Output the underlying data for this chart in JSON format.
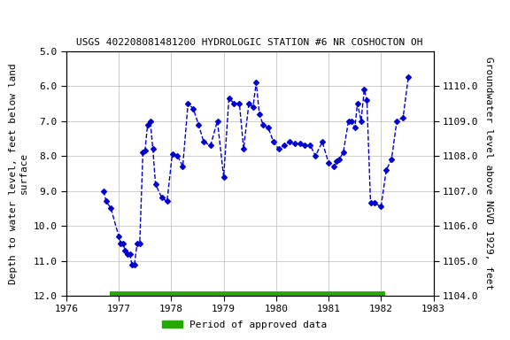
{
  "title": "USGS 402208081481200 HYDROLOGIC STATION #6 NR COSHOCTON OH",
  "ylabel_left": "Depth to water level, feet below land\nsurface",
  "ylabel_right": "Groundwater level above NGVD 1929, feet",
  "xlim": [
    1976,
    1983
  ],
  "ylim_left": [
    12.0,
    5.0
  ],
  "ylim_right": [
    1104.0,
    1111.0
  ],
  "xticks": [
    1976,
    1977,
    1978,
    1979,
    1980,
    1981,
    1982,
    1983
  ],
  "yticks_left": [
    5.0,
    6.0,
    7.0,
    8.0,
    9.0,
    10.0,
    11.0,
    12.0
  ],
  "yticks_right": [
    1104.0,
    1105.0,
    1106.0,
    1107.0,
    1108.0,
    1109.0,
    1110.0
  ],
  "data_x": [
    1976.71,
    1976.76,
    1976.85,
    1977.0,
    1977.04,
    1977.08,
    1977.12,
    1977.16,
    1977.21,
    1977.25,
    1977.3,
    1977.35,
    1977.4,
    1977.46,
    1977.5,
    1977.55,
    1977.6,
    1977.65,
    1977.7,
    1977.82,
    1977.92,
    1978.02,
    1978.12,
    1978.22,
    1978.32,
    1978.42,
    1978.52,
    1978.62,
    1978.75,
    1978.88,
    1979.0,
    1979.1,
    1979.2,
    1979.3,
    1979.38,
    1979.48,
    1979.56,
    1979.62,
    1979.68,
    1979.75,
    1979.85,
    1979.95,
    1980.05,
    1980.15,
    1980.25,
    1980.35,
    1980.45,
    1980.55,
    1980.65,
    1980.75,
    1980.88,
    1981.0,
    1981.1,
    1981.15,
    1981.2,
    1981.28,
    1981.38,
    1981.44,
    1981.5,
    1981.55,
    1981.62,
    1981.68,
    1981.73,
    1981.8,
    1981.87,
    1982.0,
    1982.1,
    1982.2,
    1982.3,
    1982.42,
    1982.52
  ],
  "data_y": [
    9.0,
    9.3,
    9.5,
    10.3,
    10.5,
    10.5,
    10.7,
    10.8,
    10.8,
    11.1,
    11.1,
    10.5,
    10.5,
    7.9,
    7.85,
    7.1,
    7.0,
    7.8,
    8.8,
    9.2,
    9.3,
    7.95,
    8.0,
    8.3,
    6.5,
    6.65,
    7.1,
    7.6,
    7.7,
    7.0,
    8.6,
    6.35,
    6.5,
    6.5,
    7.8,
    6.5,
    6.6,
    5.9,
    6.8,
    7.1,
    7.2,
    7.6,
    7.8,
    7.7,
    7.6,
    7.65,
    7.65,
    7.7,
    7.7,
    8.0,
    7.6,
    8.2,
    8.3,
    8.15,
    8.1,
    7.9,
    7.0,
    7.0,
    7.2,
    6.5,
    7.0,
    6.1,
    6.4,
    9.35,
    9.35,
    9.45,
    8.4,
    8.1,
    7.0,
    6.9,
    5.75
  ],
  "line_color": "#0000CC",
  "marker_color": "#0000CC",
  "marker": "D",
  "marker_size": 3,
  "line_style": "--",
  "line_width": 1.0,
  "grid_color": "#bbbbbb",
  "background_color": "#ffffff",
  "legend_label": "Period of approved data",
  "legend_color": "#22aa00",
  "bar_start": 1976.83,
  "bar_end": 1982.08,
  "bar_y": 12.0
}
